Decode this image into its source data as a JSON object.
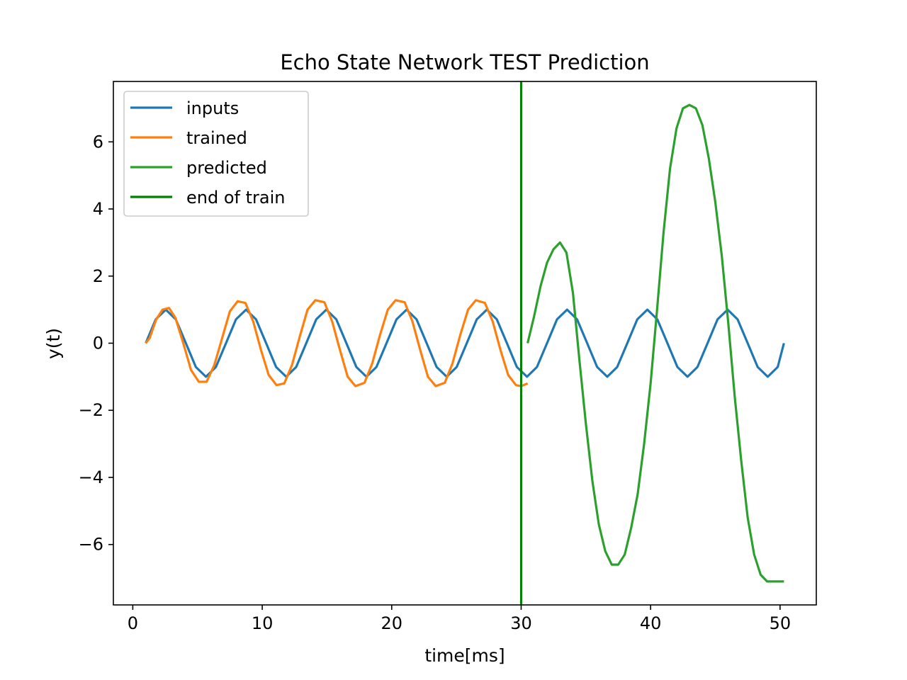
{
  "chart_data": {
    "type": "line",
    "title": "Echo State Network TEST Prediction",
    "xlabel": "time[ms]",
    "ylabel": "y(t)",
    "xlim": [
      -1.5,
      52.8
    ],
    "ylim": [
      -7.8,
      7.8
    ],
    "xticks": [
      0,
      10,
      20,
      30,
      40,
      50
    ],
    "yticks": [
      -6,
      -4,
      -2,
      0,
      2,
      4,
      6
    ],
    "xtick_labels": [
      "0",
      "10",
      "20",
      "30",
      "40",
      "50"
    ],
    "ytick_labels": [
      "−6",
      "−4",
      "−2",
      "0",
      "2",
      "4",
      "6"
    ],
    "legend_position": "upper-left",
    "series": [
      {
        "name": "inputs",
        "color": "#1f77b4",
        "x": [
          1.0,
          1.77,
          2.55,
          3.32,
          4.1,
          4.87,
          5.65,
          6.42,
          7.2,
          7.97,
          8.75,
          9.52,
          10.3,
          11.07,
          11.85,
          12.62,
          13.4,
          14.17,
          14.95,
          15.72,
          16.5,
          17.27,
          18.05,
          18.82,
          19.6,
          20.37,
          21.15,
          21.92,
          22.7,
          23.47,
          24.25,
          25.02,
          25.8,
          26.57,
          27.35,
          28.12,
          28.9,
          29.67,
          30.45,
          31.22,
          32.0,
          32.77,
          33.55,
          34.32,
          35.1,
          35.87,
          36.65,
          37.42,
          38.2,
          38.97,
          39.75,
          40.52,
          41.3,
          42.07,
          42.85,
          43.62,
          44.4,
          45.17,
          45.95,
          46.72,
          47.5,
          48.27,
          49.05,
          49.82,
          50.3
        ],
        "y": [
          0.0,
          0.71,
          1.0,
          0.71,
          0.0,
          -0.71,
          -1.0,
          -0.71,
          0.0,
          0.71,
          1.0,
          0.71,
          0.0,
          -0.71,
          -1.0,
          -0.71,
          0.0,
          0.71,
          1.0,
          0.71,
          0.0,
          -0.71,
          -1.0,
          -0.71,
          0.0,
          0.71,
          1.0,
          0.71,
          0.0,
          -0.71,
          -1.0,
          -0.71,
          0.0,
          0.71,
          1.0,
          0.71,
          0.0,
          -0.71,
          -1.0,
          -0.71,
          0.0,
          0.71,
          1.0,
          0.71,
          0.0,
          -0.71,
          -1.0,
          -0.71,
          0.0,
          0.71,
          1.0,
          0.71,
          0.0,
          -0.71,
          -1.0,
          -0.71,
          0.0,
          0.71,
          1.0,
          0.71,
          0.0,
          -0.71,
          -1.0,
          -0.71,
          0.0
        ]
      },
      {
        "name": "trained",
        "color": "#ff7f0e",
        "x": [
          1.0,
          1.3,
          1.8,
          2.3,
          2.8,
          3.3,
          3.9,
          4.5,
          5.1,
          5.7,
          6.3,
          6.9,
          7.5,
          8.1,
          8.7,
          9.3,
          9.9,
          10.5,
          11.1,
          11.7,
          12.3,
          12.9,
          13.5,
          14.1,
          14.8,
          15.4,
          16.0,
          16.6,
          17.2,
          17.9,
          18.5,
          19.1,
          19.7,
          20.3,
          21.0,
          21.6,
          22.2,
          22.8,
          23.4,
          24.1,
          24.7,
          25.3,
          25.9,
          26.5,
          27.2,
          27.8,
          28.4,
          29.0,
          29.6,
          30.0,
          30.5
        ],
        "y": [
          0.0,
          0.15,
          0.7,
          1.0,
          1.05,
          0.75,
          0.0,
          -0.8,
          -1.15,
          -1.15,
          -0.65,
          0.15,
          0.95,
          1.25,
          1.2,
          0.65,
          -0.2,
          -0.95,
          -1.25,
          -1.2,
          -0.65,
          0.2,
          1.0,
          1.28,
          1.22,
          0.65,
          -0.2,
          -1.0,
          -1.28,
          -1.18,
          -0.6,
          0.25,
          1.0,
          1.28,
          1.22,
          0.65,
          -0.2,
          -1.0,
          -1.28,
          -1.18,
          -0.6,
          0.25,
          1.0,
          1.28,
          1.2,
          0.65,
          -0.2,
          -0.95,
          -1.25,
          -1.28,
          -1.2
        ]
      },
      {
        "name": "predicted",
        "color": "#2ca02c",
        "x": [
          30.5,
          31.0,
          31.5,
          32.0,
          32.5,
          33.0,
          33.5,
          34.0,
          34.5,
          35.0,
          35.5,
          36.0,
          36.5,
          37.0,
          37.5,
          38.0,
          38.5,
          39.0,
          39.5,
          40.0,
          40.5,
          41.0,
          41.5,
          42.0,
          42.5,
          43.0,
          43.5,
          44.0,
          44.5,
          45.0,
          45.5,
          46.0,
          46.5,
          47.0,
          47.5,
          48.0,
          48.5,
          49.0,
          49.5,
          50.0,
          50.3
        ],
        "y": [
          0.0,
          0.8,
          1.7,
          2.4,
          2.8,
          3.0,
          2.7,
          1.5,
          -0.5,
          -2.4,
          -4.1,
          -5.4,
          -6.2,
          -6.6,
          -6.6,
          -6.3,
          -5.5,
          -4.5,
          -3.0,
          -1.2,
          1.0,
          3.3,
          5.2,
          6.4,
          7.0,
          7.1,
          7.0,
          6.5,
          5.5,
          4.2,
          2.6,
          0.6,
          -1.6,
          -3.5,
          -5.2,
          -6.3,
          -6.9,
          -7.1,
          -7.1,
          -7.1,
          -7.1
        ]
      },
      {
        "name": "end of train",
        "color": "#008000",
        "x": [
          30.0,
          30.0
        ],
        "y": [
          -7.8,
          7.8
        ]
      }
    ]
  }
}
